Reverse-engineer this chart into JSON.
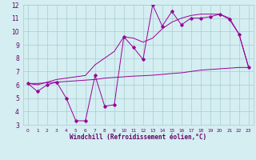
{
  "x": [
    0,
    1,
    2,
    3,
    4,
    5,
    6,
    7,
    8,
    9,
    10,
    11,
    12,
    13,
    14,
    15,
    16,
    17,
    18,
    19,
    20,
    21,
    22,
    23
  ],
  "line1_jagged": [
    6.1,
    5.5,
    6.0,
    6.2,
    5.0,
    3.3,
    3.3,
    6.7,
    4.4,
    4.5,
    9.6,
    8.8,
    7.9,
    12.0,
    10.4,
    11.5,
    10.5,
    11.0,
    11.0,
    11.1,
    11.3,
    10.9,
    9.8,
    7.3
  ],
  "line2_smooth": [
    6.1,
    6.0,
    6.2,
    6.4,
    6.5,
    6.6,
    6.7,
    7.5,
    8.0,
    8.5,
    9.6,
    9.5,
    9.2,
    9.5,
    10.2,
    10.7,
    11.0,
    11.2,
    11.3,
    11.3,
    11.3,
    11.0,
    9.8,
    7.3
  ],
  "line3_flat": [
    6.1,
    6.1,
    6.15,
    6.2,
    6.25,
    6.3,
    6.35,
    6.4,
    6.5,
    6.55,
    6.6,
    6.65,
    6.68,
    6.72,
    6.78,
    6.85,
    6.9,
    7.0,
    7.1,
    7.15,
    7.2,
    7.25,
    7.3,
    7.3
  ],
  "line_color": "#990099",
  "bg_color": "#d4eef2",
  "grid_color": "#aacccc",
  "xlabel": "Windchill (Refroidissement éolien,°C)",
  "xlabel_color": "#660066",
  "tick_color": "#660066",
  "xlim": [
    -0.5,
    23.5
  ],
  "ylim": [
    3,
    12
  ],
  "yticks": [
    3,
    4,
    5,
    6,
    7,
    8,
    9,
    10,
    11,
    12
  ],
  "xticks": [
    0,
    1,
    2,
    3,
    4,
    5,
    6,
    7,
    8,
    9,
    10,
    11,
    12,
    13,
    14,
    15,
    16,
    17,
    18,
    19,
    20,
    21,
    22,
    23
  ]
}
